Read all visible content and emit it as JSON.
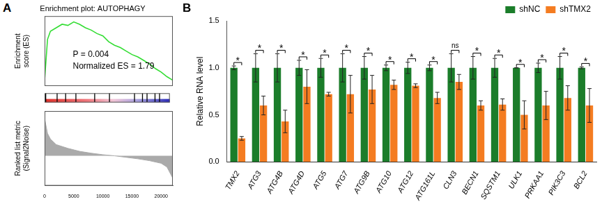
{
  "chart_data": [
    {
      "panel": "A",
      "type": "line",
      "title": "Enrichment plot: AUTOPHAGY",
      "y_label": [
        "Enrichment",
        "score (ES)"
      ],
      "annotations": [
        "P = 0.004",
        "Normalized ES = 1.79"
      ],
      "x": [
        0,
        500,
        1000,
        2000,
        3000,
        4000,
        5000,
        6000,
        7000,
        8000,
        9000,
        10000,
        11000,
        12000,
        13000,
        14000,
        15000,
        16000,
        17000,
        18000,
        19000,
        20000,
        21000,
        22000
      ],
      "values": [
        0,
        0.35,
        0.42,
        0.45,
        0.48,
        0.47,
        0.5,
        0.48,
        0.45,
        0.43,
        0.4,
        0.38,
        0.33,
        0.3,
        0.28,
        0.25,
        0.22,
        0.2,
        0.17,
        0.14,
        0.1,
        0.07,
        0.03,
        0
      ],
      "color": "#33dd33",
      "xlim": [
        0,
        22000
      ],
      "ylim": [
        -0.05,
        0.55
      ],
      "tick_labels": false,
      "grid": false
    },
    {
      "type": "rug",
      "x": [
        200,
        2200,
        3700,
        5500,
        8800,
        11400,
        15800,
        17200,
        18000,
        19400,
        20200
      ],
      "color": "#000000",
      "xlim": [
        0,
        22000
      ],
      "tick_labels": false,
      "grid": false
    },
    {
      "type": "area",
      "y_label": [
        "Ranked list metric",
        "(Signal2Noise)"
      ],
      "x": [
        0,
        500,
        1000,
        2000,
        4000,
        6000,
        8000,
        10000,
        12000,
        14000,
        16000,
        18000,
        20000,
        21000,
        22000
      ],
      "values": [
        1.0,
        0.6,
        0.45,
        0.3,
        0.2,
        0.12,
        0.07,
        0.03,
        0,
        -0.04,
        -0.08,
        -0.13,
        -0.2,
        -0.3,
        -0.6
      ],
      "color": "#aaaaaa",
      "xlim": [
        0,
        22000
      ],
      "ylim": [
        -0.8,
        1.2
      ],
      "xticks": [
        0,
        5000,
        10000,
        15000,
        20000
      ],
      "tick_labels": "x",
      "grid": false
    },
    {
      "panel": "B",
      "type": "bar",
      "y_label": "Relative RNA level",
      "categories": [
        "TMX2",
        "ATG3",
        "ATG4B",
        "ATG4D",
        "ATG5",
        "ATG7",
        "ATG9B",
        "ATG10",
        "ATG12",
        "ATG161L",
        "CLN3",
        "BECN1",
        "SQSTM1",
        "ULK1",
        "PRKAA1",
        "PIK3C3",
        "BCL2"
      ],
      "series": [
        {
          "name": "shNC",
          "color": "#1b7d2a",
          "values": [
            1,
            1,
            1,
            1,
            1,
            1,
            1,
            1,
            1,
            1,
            1,
            1,
            1,
            1,
            1,
            1,
            1
          ],
          "errors": [
            0.02,
            0.15,
            0.15,
            0.08,
            0.1,
            0.15,
            0.12,
            0.03,
            0.06,
            0.03,
            0.15,
            0.12,
            0.1,
            0.0,
            0.05,
            0.12,
            0.01
          ]
        },
        {
          "name": "shTMX2",
          "color": "#f47c21",
          "values": [
            0.25,
            0.6,
            0.43,
            0.8,
            0.72,
            0.72,
            0.77,
            0.82,
            0.81,
            0.68,
            0.85,
            0.6,
            0.61,
            0.5,
            0.6,
            0.68,
            0.6
          ],
          "errors": [
            0.02,
            0.1,
            0.12,
            0.18,
            0.02,
            0.2,
            0.15,
            0.05,
            0.02,
            0.06,
            0.08,
            0.05,
            0.06,
            0.15,
            0.15,
            0.13,
            0.18
          ]
        }
      ],
      "significance": [
        "*",
        "*",
        "*",
        "*",
        "*",
        "*",
        "*",
        "*",
        "*",
        "*",
        "ns",
        "*",
        "*",
        "*",
        "*",
        "*",
        "*"
      ],
      "ylim": [
        0,
        1.5
      ],
      "yticks": [
        {
          "value": 0,
          "label": "0.0"
        },
        {
          "value": 0.5,
          "label": "0.5"
        },
        {
          "value": 1,
          "label": "1.0"
        },
        {
          "value": 1.5,
          "label": "1.5"
        }
      ],
      "legend": "top-right",
      "grid": false
    }
  ]
}
